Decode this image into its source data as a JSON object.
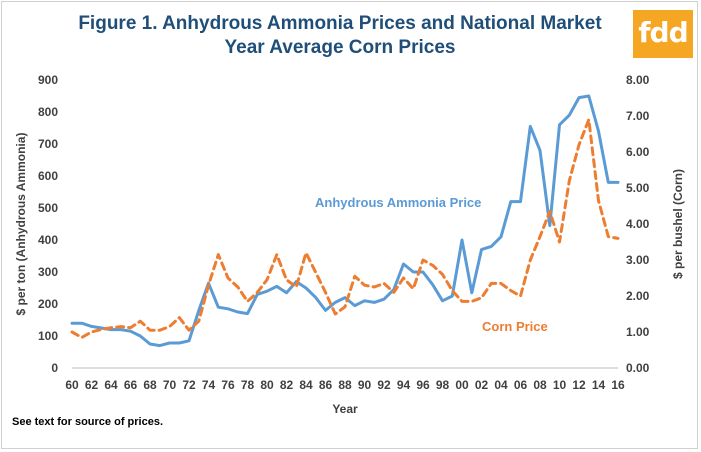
{
  "page": {
    "title_line1": "Figure 1.  Anhydrous Ammonia Prices and National Market",
    "title_line2": "Year Average Corn Prices",
    "logo_text": "fdd",
    "logo_color": "#f5a623",
    "footnote": "See text for source of prices."
  },
  "chart_data": {
    "type": "line",
    "title": "Figure 1.  Anhydrous Ammonia Prices and National Market Year Average Corn Prices",
    "xlabel": "Year",
    "ylabel_left": "$ per ton (Anhydrous Ammonia)",
    "ylabel_right": "$ per bushel (Corn)",
    "ylim_left": [
      0,
      900
    ],
    "ylim_right": [
      0,
      8
    ],
    "yticks_left": [
      "0",
      "100",
      "200",
      "300",
      "400",
      "500",
      "600",
      "700",
      "800",
      "900"
    ],
    "yticks_right": [
      "0.00",
      "1.00",
      "2.00",
      "3.00",
      "4.00",
      "5.00",
      "6.00",
      "7.00",
      "8.00"
    ],
    "x": [
      60,
      61,
      62,
      63,
      64,
      65,
      66,
      67,
      68,
      69,
      70,
      71,
      72,
      73,
      74,
      75,
      76,
      77,
      78,
      79,
      80,
      81,
      82,
      83,
      84,
      85,
      86,
      87,
      88,
      89,
      90,
      91,
      92,
      93,
      94,
      95,
      96,
      97,
      98,
      99,
      100,
      101,
      102,
      103,
      104,
      105,
      106,
      107,
      108,
      109,
      110,
      111,
      112,
      113,
      114,
      115,
      116
    ],
    "xtick_labels": [
      "60",
      "62",
      "64",
      "66",
      "68",
      "70",
      "72",
      "74",
      "76",
      "78",
      "80",
      "82",
      "84",
      "86",
      "88",
      "90",
      "92",
      "94",
      "96",
      "98",
      "00",
      "02",
      "04",
      "06",
      "08",
      "10",
      "12",
      "14",
      "16"
    ],
    "grid": false,
    "series": [
      {
        "name": "Anhydrous  Ammonia Price",
        "axis": "left",
        "color": "#5b9bd5",
        "dash": "solid",
        "values": [
          140,
          140,
          130,
          125,
          120,
          120,
          115,
          100,
          75,
          70,
          78,
          78,
          85,
          180,
          265,
          190,
          185,
          175,
          170,
          230,
          240,
          255,
          235,
          270,
          250,
          220,
          180,
          205,
          220,
          195,
          210,
          205,
          215,
          245,
          325,
          300,
          300,
          260,
          210,
          225,
          400,
          235,
          370,
          380,
          410,
          520,
          520,
          755,
          680,
          445,
          760,
          790,
          845,
          850,
          740,
          580,
          580
        ]
      },
      {
        "name": "Corn Price",
        "axis": "right",
        "color": "#ed7d31",
        "dash": "dashed",
        "values": [
          1.0,
          0.85,
          1.0,
          1.07,
          1.12,
          1.15,
          1.12,
          1.3,
          1.05,
          1.05,
          1.15,
          1.4,
          1.05,
          1.3,
          2.3,
          3.15,
          2.5,
          2.25,
          1.85,
          2.1,
          2.45,
          3.15,
          2.45,
          2.25,
          3.2,
          2.65,
          2.1,
          1.5,
          1.7,
          2.55,
          2.3,
          2.25,
          2.35,
          2.1,
          2.5,
          2.2,
          3.0,
          2.85,
          2.6,
          2.15,
          1.85,
          1.85,
          1.95,
          2.35,
          2.35,
          2.15,
          2.0,
          3.0,
          3.65,
          4.35,
          3.5,
          5.2,
          6.2,
          6.9,
          4.65,
          3.65,
          3.6
        ]
      }
    ],
    "annotations": [
      {
        "text": "Anhydrous  Ammonia Price",
        "series": "Anhydrous  Ammonia Price"
      },
      {
        "text": "Corn Price",
        "series": "Corn Price"
      }
    ]
  }
}
